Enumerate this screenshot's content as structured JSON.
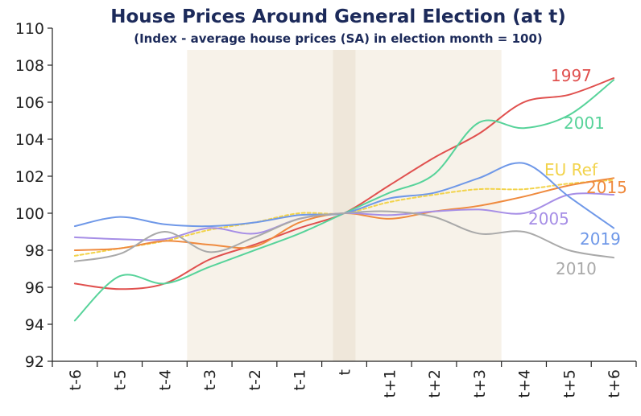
{
  "chart_data": {
    "type": "line",
    "title": "House Prices Around General Election (at t)",
    "subtitle": "(Index - average house prices (SA) in election month = 100)",
    "categories": [
      "t-6",
      "t-5",
      "t-4",
      "t-3",
      "t-2",
      "t-1",
      "t",
      "t+1",
      "t+2",
      "t+3",
      "t+4",
      "t+5",
      "t+6"
    ],
    "ylim": [
      92,
      110
    ],
    "yticks": [
      92,
      94,
      96,
      98,
      100,
      102,
      104,
      106,
      108,
      110
    ],
    "grid": false,
    "shaded_ranges": [
      {
        "from": "t-3",
        "to": "t+3",
        "color": "#f7f2e9"
      },
      {
        "from": "t",
        "to": "t",
        "color": "#efe7da"
      }
    ],
    "series": [
      {
        "name": "1997",
        "color": "#e0504e",
        "dashed": false,
        "values": [
          96.2,
          95.9,
          96.2,
          97.5,
          98.3,
          99.2,
          100.0,
          101.5,
          103.0,
          104.3,
          106.0,
          106.4,
          107.3
        ]
      },
      {
        "name": "2001",
        "color": "#57d39a",
        "dashed": false,
        "values": [
          94.2,
          96.6,
          96.2,
          97.1,
          98.0,
          98.9,
          100.0,
          101.1,
          102.1,
          104.9,
          104.6,
          105.3,
          107.2
        ]
      },
      {
        "name": "EU Ref",
        "color": "#f2d34a",
        "dashed": true,
        "values": [
          97.7,
          98.1,
          98.5,
          99.1,
          99.5,
          100.0,
          100.0,
          100.6,
          101.0,
          101.3,
          101.3,
          101.6,
          101.8
        ]
      },
      {
        "name": "2015",
        "color": "#ef8a3e",
        "dashed": false,
        "values": [
          98.0,
          98.1,
          98.5,
          98.3,
          98.2,
          99.5,
          100.0,
          99.7,
          100.1,
          100.4,
          100.9,
          101.5,
          101.9
        ]
      },
      {
        "name": "2005",
        "color": "#a68ee6",
        "dashed": false,
        "values": [
          98.7,
          98.6,
          98.6,
          99.2,
          98.9,
          99.7,
          100.0,
          99.9,
          100.1,
          100.2,
          100.0,
          101.0,
          101.0
        ]
      },
      {
        "name": "2019",
        "color": "#6f98e8",
        "dashed": false,
        "values": [
          99.3,
          99.8,
          99.4,
          99.3,
          99.5,
          99.9,
          100.0,
          100.8,
          101.1,
          101.9,
          102.7,
          100.9,
          99.2
        ]
      },
      {
        "name": "2010",
        "color": "#a9a9a9",
        "dashed": false,
        "values": [
          97.4,
          97.8,
          99.0,
          97.9,
          98.7,
          99.7,
          100.0,
          100.1,
          99.8,
          98.9,
          99.0,
          98.0,
          97.6
        ]
      }
    ]
  }
}
